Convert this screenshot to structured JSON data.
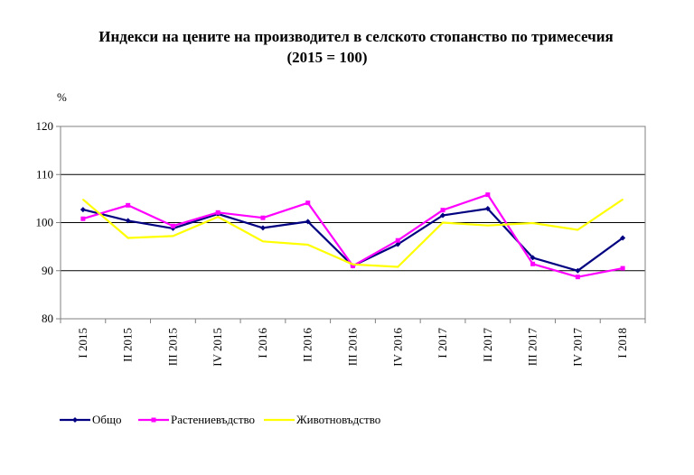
{
  "chart_data": {
    "type": "line",
    "title_line1": "Индекси на цените на производител в селското стопанство по тримесечия",
    "title_line2": "(2015 = 100)",
    "ylabel": "%",
    "ylim": [
      80,
      120
    ],
    "yticks": [
      80,
      90,
      100,
      110,
      120
    ],
    "grid": "horizontal",
    "legend_position": "bottom-left",
    "categories": [
      "I 2015",
      "II 2015",
      "III 2015",
      "IV 2015",
      "I 2016",
      "II 2016",
      "III 2016",
      "IV 2016",
      "I 2017",
      "II 2017",
      "III 2017",
      "IV 2017",
      "I 2018"
    ],
    "series": [
      {
        "name": "Общо",
        "color": "#000080",
        "marker": "diamond",
        "values": [
          102.7,
          100.4,
          98.8,
          101.8,
          98.9,
          100.2,
          91.0,
          95.5,
          101.5,
          102.9,
          92.7,
          90.0,
          96.8
        ]
      },
      {
        "name": "Растениевъдство",
        "color": "#ff00ff",
        "marker": "square",
        "values": [
          100.8,
          103.6,
          99.3,
          102.1,
          101.0,
          104.1,
          91.0,
          96.3,
          102.6,
          105.8,
          91.4,
          88.7,
          90.5
        ]
      },
      {
        "name": "Животновъдство",
        "color": "#ffff00",
        "marker": "none",
        "values": [
          104.8,
          96.8,
          97.2,
          101.2,
          96.1,
          95.4,
          91.3,
          90.8,
          100.0,
          99.4,
          99.9,
          98.5,
          104.8
        ]
      }
    ]
  }
}
